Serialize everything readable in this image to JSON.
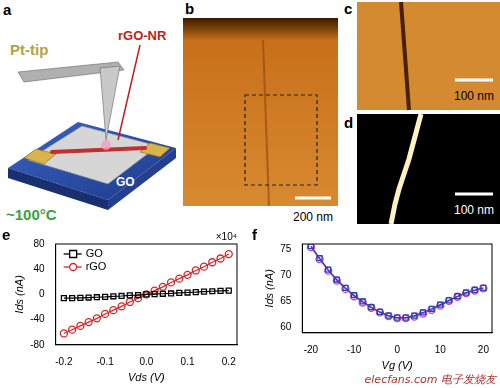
{
  "panels": {
    "a": {
      "panel_label": "a",
      "tip": "Pt-tip",
      "ribbon": "rGO-NR",
      "sheet": "GO",
      "temperature": "~100°C"
    },
    "b": {
      "panel_label": "b",
      "scale_bar": "200 nm"
    },
    "c": {
      "panel_label": "c",
      "scale_bar": "100 nm"
    },
    "d": {
      "panel_label": "d",
      "scale_bar": "100 nm"
    }
  },
  "chart_data": [
    {
      "panel_label": "e",
      "type": "line",
      "x_label": "Vds (V)",
      "y_label": "Ids (nA)",
      "x": [
        -0.2,
        -0.18,
        -0.16,
        -0.14,
        -0.12,
        -0.1,
        -0.08,
        -0.06,
        -0.04,
        -0.02,
        0,
        0.02,
        0.04,
        0.06,
        0.08,
        0.1,
        0.12,
        0.14,
        0.16,
        0.18,
        0.2
      ],
      "xlim": [
        -0.22,
        0.22
      ],
      "xticks": [
        -0.2,
        -0.1,
        {
          "value": 0,
          "label": "0.0"
        },
        0.1,
        0.2
      ],
      "ylim": [
        -80,
        80
      ],
      "yticks": [
        -80,
        -40,
        0,
        40,
        80
      ],
      "series": [
        {
          "name": "GO",
          "color": "#000000",
          "marker": "square",
          "values": [
            -6,
            -5.8,
            -5.5,
            -5,
            -4.5,
            -4,
            -3,
            -2.5,
            -1.5,
            -1,
            0,
            0.5,
            1,
            1.5,
            2.5,
            3,
            3.5,
            4.5,
            5,
            5.5,
            6
          ]
        },
        {
          "name": "rGO",
          "color": "#d62728",
          "marker": "circle",
          "values": [
            -62,
            -56,
            -50,
            -44,
            -38,
            -31,
            -25,
            -19,
            -12,
            -6,
            0,
            6,
            12,
            19,
            25,
            31,
            38,
            44,
            51,
            57,
            64
          ]
        }
      ],
      "annotations": [
        "×10⁴"
      ],
      "legend": "upper left",
      "grid": false
    },
    {
      "panel_label": "f",
      "type": "line",
      "x_label": "Vg (V)",
      "y_label": "Ids (nA)",
      "x": [
        -20,
        -18,
        -16,
        -14,
        -12,
        -10,
        -8,
        -6,
        -4,
        -2,
        0,
        2,
        4,
        6,
        8,
        10,
        12,
        14,
        16,
        18,
        20
      ],
      "xlim": [
        -22,
        22
      ],
      "xticks": [
        -20,
        -10,
        0,
        10,
        20
      ],
      "ylim": [
        59,
        76
      ],
      "yticks": [
        60,
        65,
        70,
        75
      ],
      "series": [
        {
          "color": "#2a3fb0",
          "marker": "square",
          "values": [
            75.6,
            73.3,
            71.1,
            69.2,
            67.6,
            66.2,
            65.0,
            63.9,
            63.0,
            62.3,
            61.9,
            61.9,
            62.3,
            62.9,
            63.6,
            64.4,
            65.2,
            66.0,
            66.7,
            67.2,
            67.6
          ]
        },
        {
          "color": "#c040c0",
          "marker": "circle",
          "values": [
            75.4,
            73.1,
            70.9,
            69.0,
            67.4,
            66.0,
            64.8,
            63.8,
            62.9,
            62.2,
            61.8,
            61.8,
            62.1,
            62.7,
            63.4,
            64.2,
            65.1,
            65.9,
            66.6,
            67.1,
            67.5
          ]
        }
      ],
      "grid": false
    }
  ],
  "watermark": "elecfans.com 电子发烧友"
}
